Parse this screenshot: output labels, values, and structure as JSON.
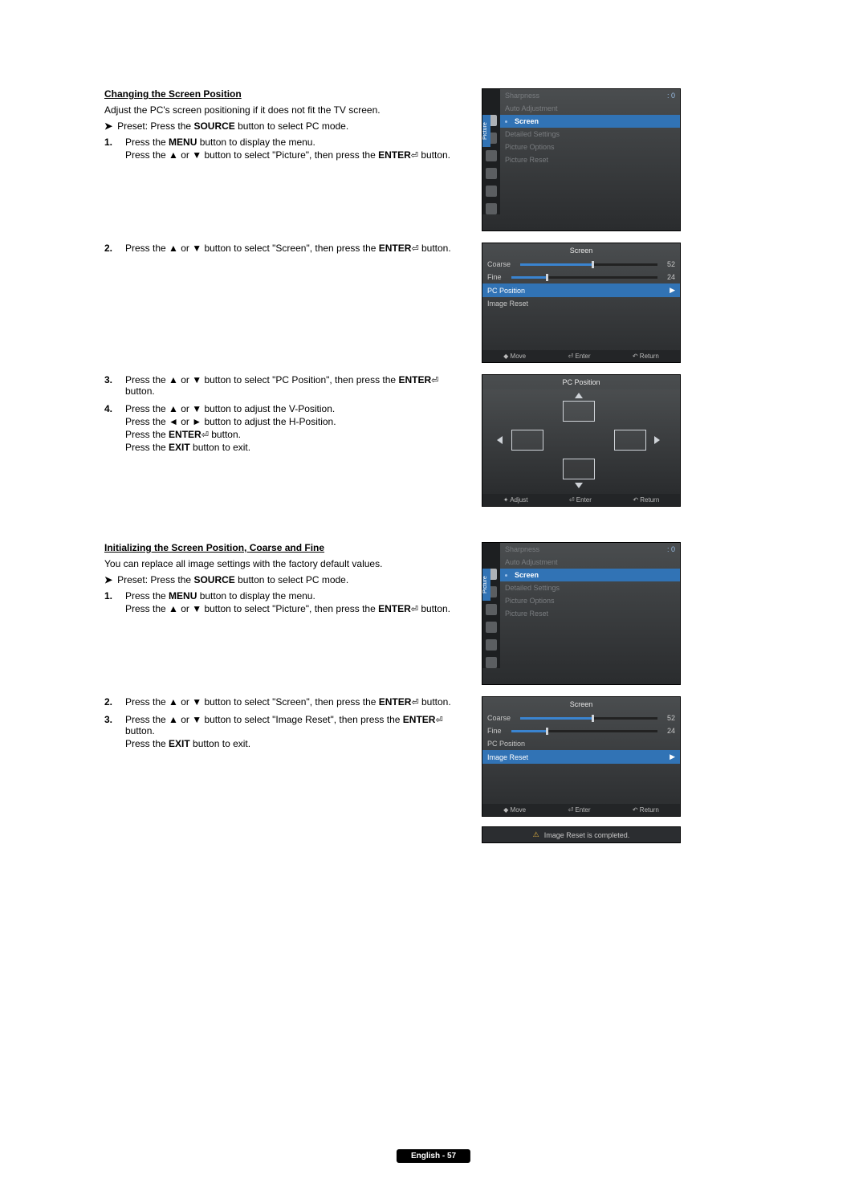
{
  "section1": {
    "title": "Changing the Screen Position",
    "intro": "Adjust the PC's screen positioning if it does not fit the TV screen.",
    "preset_pre": "Preset: Press the ",
    "preset_b": "SOURCE",
    "preset_post": " button to select PC mode.",
    "steps": [
      {
        "n": "1.",
        "lines": [
          {
            "parts": [
              {
                "t": "Press the "
              },
              {
                "t": "MENU",
                "b": true
              },
              {
                "t": " button to display the menu."
              }
            ]
          },
          {
            "parts": [
              {
                "t": "Press the ▲ or ▼ button to select \"Picture\", then press the "
              },
              {
                "t": "ENTER",
                "b": true
              },
              {
                "t": " ",
                "enter": true
              },
              {
                "t": " button."
              }
            ]
          }
        ]
      },
      {
        "n": "2.",
        "lines": [
          {
            "parts": [
              {
                "t": "Press the ▲ or ▼ button to select \"Screen\", then press the "
              },
              {
                "t": "ENTER",
                "b": true
              },
              {
                "t": " ",
                "enter": true
              },
              {
                "t": " button."
              }
            ]
          }
        ]
      },
      {
        "n": "3.",
        "lines": [
          {
            "parts": [
              {
                "t": "Press the ▲ or ▼ button to select \"PC Position\", then press the "
              },
              {
                "t": "ENTER",
                "b": true
              },
              {
                "t": " ",
                "enter": true
              },
              {
                "t": " button."
              }
            ]
          }
        ]
      },
      {
        "n": "4.",
        "lines": [
          {
            "parts": [
              {
                "t": "Press the ▲ or ▼ button to adjust the V-Position."
              }
            ]
          },
          {
            "parts": [
              {
                "t": "Press the ◄ or ► button to adjust the H-Position."
              }
            ]
          },
          {
            "parts": [
              {
                "t": "Press the "
              },
              {
                "t": "ENTER",
                "b": true
              },
              {
                "t": " ",
                "enter": true
              },
              {
                "t": " button."
              }
            ]
          },
          {
            "parts": [
              {
                "t": "Press the "
              },
              {
                "t": "EXIT",
                "b": true
              },
              {
                "t": " button to exit."
              }
            ]
          }
        ]
      }
    ]
  },
  "section2": {
    "title": "Initializing the Screen Position, Coarse and Fine",
    "intro": "You can replace all image settings with the factory default values.",
    "preset_pre": "Preset: Press the ",
    "preset_b": "SOURCE",
    "preset_post": " button to select PC mode.",
    "steps": [
      {
        "n": "1.",
        "lines": [
          {
            "parts": [
              {
                "t": "Press the "
              },
              {
                "t": "MENU",
                "b": true
              },
              {
                "t": " button to display the menu."
              }
            ]
          },
          {
            "parts": [
              {
                "t": "Press the ▲ or ▼ button to select \"Picture\", then press the "
              },
              {
                "t": "ENTER",
                "b": true
              },
              {
                "t": " ",
                "enter": true
              },
              {
                "t": " button."
              }
            ]
          }
        ]
      },
      {
        "n": "2.",
        "lines": [
          {
            "parts": [
              {
                "t": "Press the ▲ or ▼ button to select \"Screen\", then press the "
              },
              {
                "t": "ENTER",
                "b": true
              },
              {
                "t": " ",
                "enter": true
              },
              {
                "t": " button."
              }
            ]
          }
        ]
      },
      {
        "n": "3.",
        "lines": [
          {
            "parts": [
              {
                "t": "Press the ▲ or ▼ button to select \"Image Reset\", then press the "
              },
              {
                "t": "ENTER",
                "b": true
              },
              {
                "t": " ",
                "enter": true
              },
              {
                "t": " button."
              }
            ]
          },
          {
            "parts": [
              {
                "t": "Press the "
              },
              {
                "t": "EXIT",
                "b": true
              },
              {
                "t": " button to exit."
              }
            ]
          }
        ]
      }
    ]
  },
  "osd": {
    "picture_tab": "Picture",
    "menu1": {
      "sharpness": "Sharpness",
      "sharpness_val": ": 0",
      "auto_adj": "Auto Adjustment",
      "screen": "Screen",
      "detailed": "Detailed Settings",
      "pic_opt": "Picture Options",
      "pic_reset": "Picture Reset"
    },
    "screen_menu": {
      "title": "Screen",
      "coarse": "Coarse",
      "coarse_val": "52",
      "fine": "Fine",
      "fine_val": "24",
      "pcpos": "PC Position",
      "imgreset": "Image Reset"
    },
    "pcpos_title": "PC Position",
    "footer_move": "Move",
    "footer_enter": "Enter",
    "footer_return": "Return",
    "footer_adjust": "Adjust",
    "notice": "Image Reset is completed."
  },
  "page_footer": "English - 57",
  "colors": {
    "accent": "#3173b5",
    "slider_fill": "#3a84d0"
  }
}
